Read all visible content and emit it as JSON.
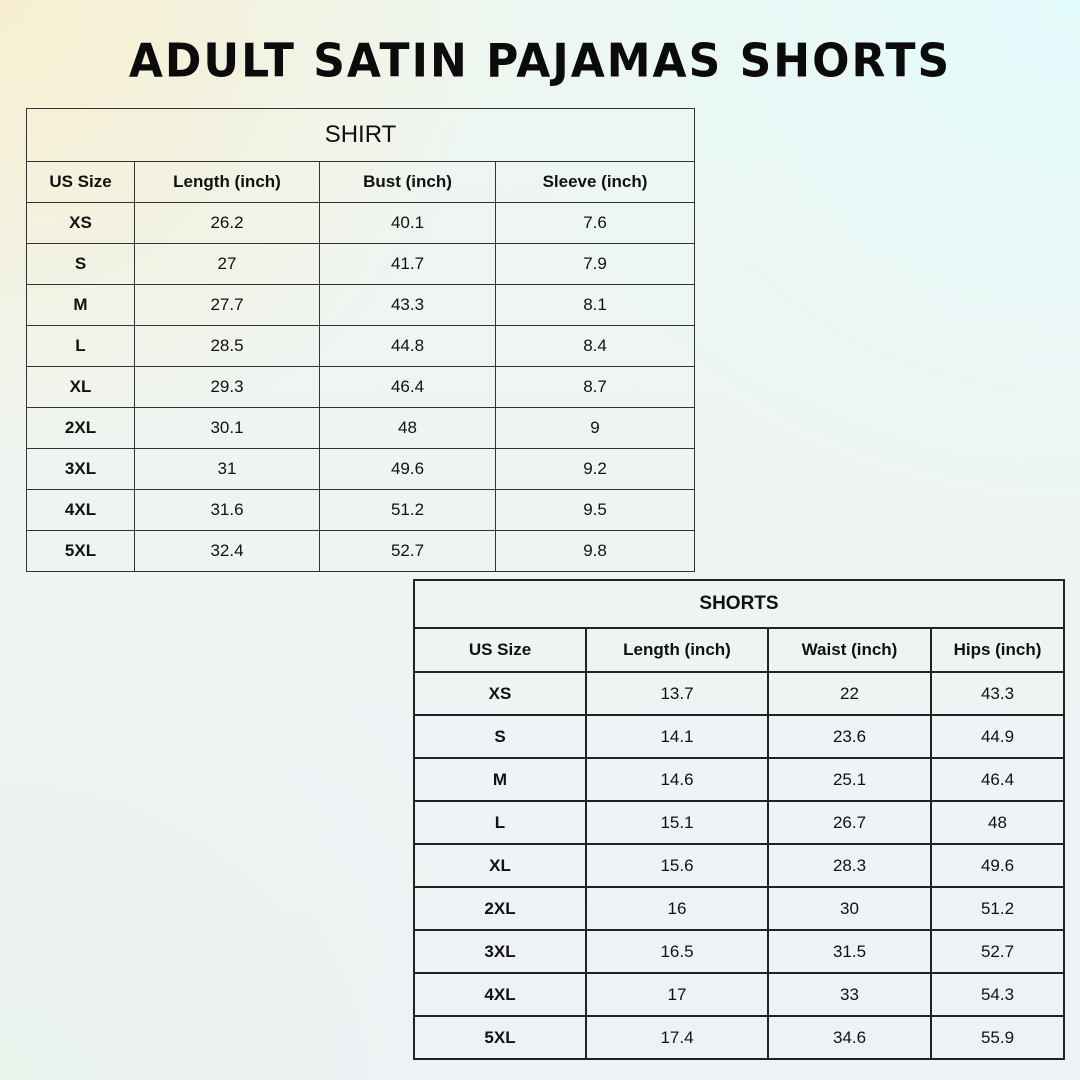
{
  "title": "ADULT SATIN PAJAMAS SHORTS",
  "shirt": {
    "caption": "SHIRT",
    "headers": [
      "US Size",
      "Length (inch)",
      "Bust (inch)",
      "Sleeve (inch)"
    ],
    "rows": [
      [
        "XS",
        "26.2",
        "40.1",
        "7.6"
      ],
      [
        "S",
        "27",
        "41.7",
        "7.9"
      ],
      [
        "M",
        "27.7",
        "43.3",
        "8.1"
      ],
      [
        "L",
        "28.5",
        "44.8",
        "8.4"
      ],
      [
        "XL",
        "29.3",
        "46.4",
        "8.7"
      ],
      [
        "2XL",
        "30.1",
        "48",
        "9"
      ],
      [
        "3XL",
        "31",
        "49.6",
        "9.2"
      ],
      [
        "4XL",
        "31.6",
        "51.2",
        "9.5"
      ],
      [
        "5XL",
        "32.4",
        "52.7",
        "9.8"
      ]
    ]
  },
  "shorts": {
    "caption": "SHORTS",
    "headers": [
      "US Size",
      "Length (inch)",
      "Waist (inch)",
      "Hips (inch)"
    ],
    "rows": [
      [
        "XS",
        "13.7",
        "22",
        "43.3"
      ],
      [
        "S",
        "14.1",
        "23.6",
        "44.9"
      ],
      [
        "M",
        "14.6",
        "25.1",
        "46.4"
      ],
      [
        "L",
        "15.1",
        "26.7",
        "48"
      ],
      [
        "XL",
        "15.6",
        "28.3",
        "49.6"
      ],
      [
        "2XL",
        "16",
        "30",
        "51.2"
      ],
      [
        "3XL",
        "16.5",
        "31.5",
        "52.7"
      ],
      [
        "4XL",
        "17",
        "33",
        "54.3"
      ],
      [
        "5XL",
        "17.4",
        "34.6",
        "55.9"
      ]
    ]
  }
}
